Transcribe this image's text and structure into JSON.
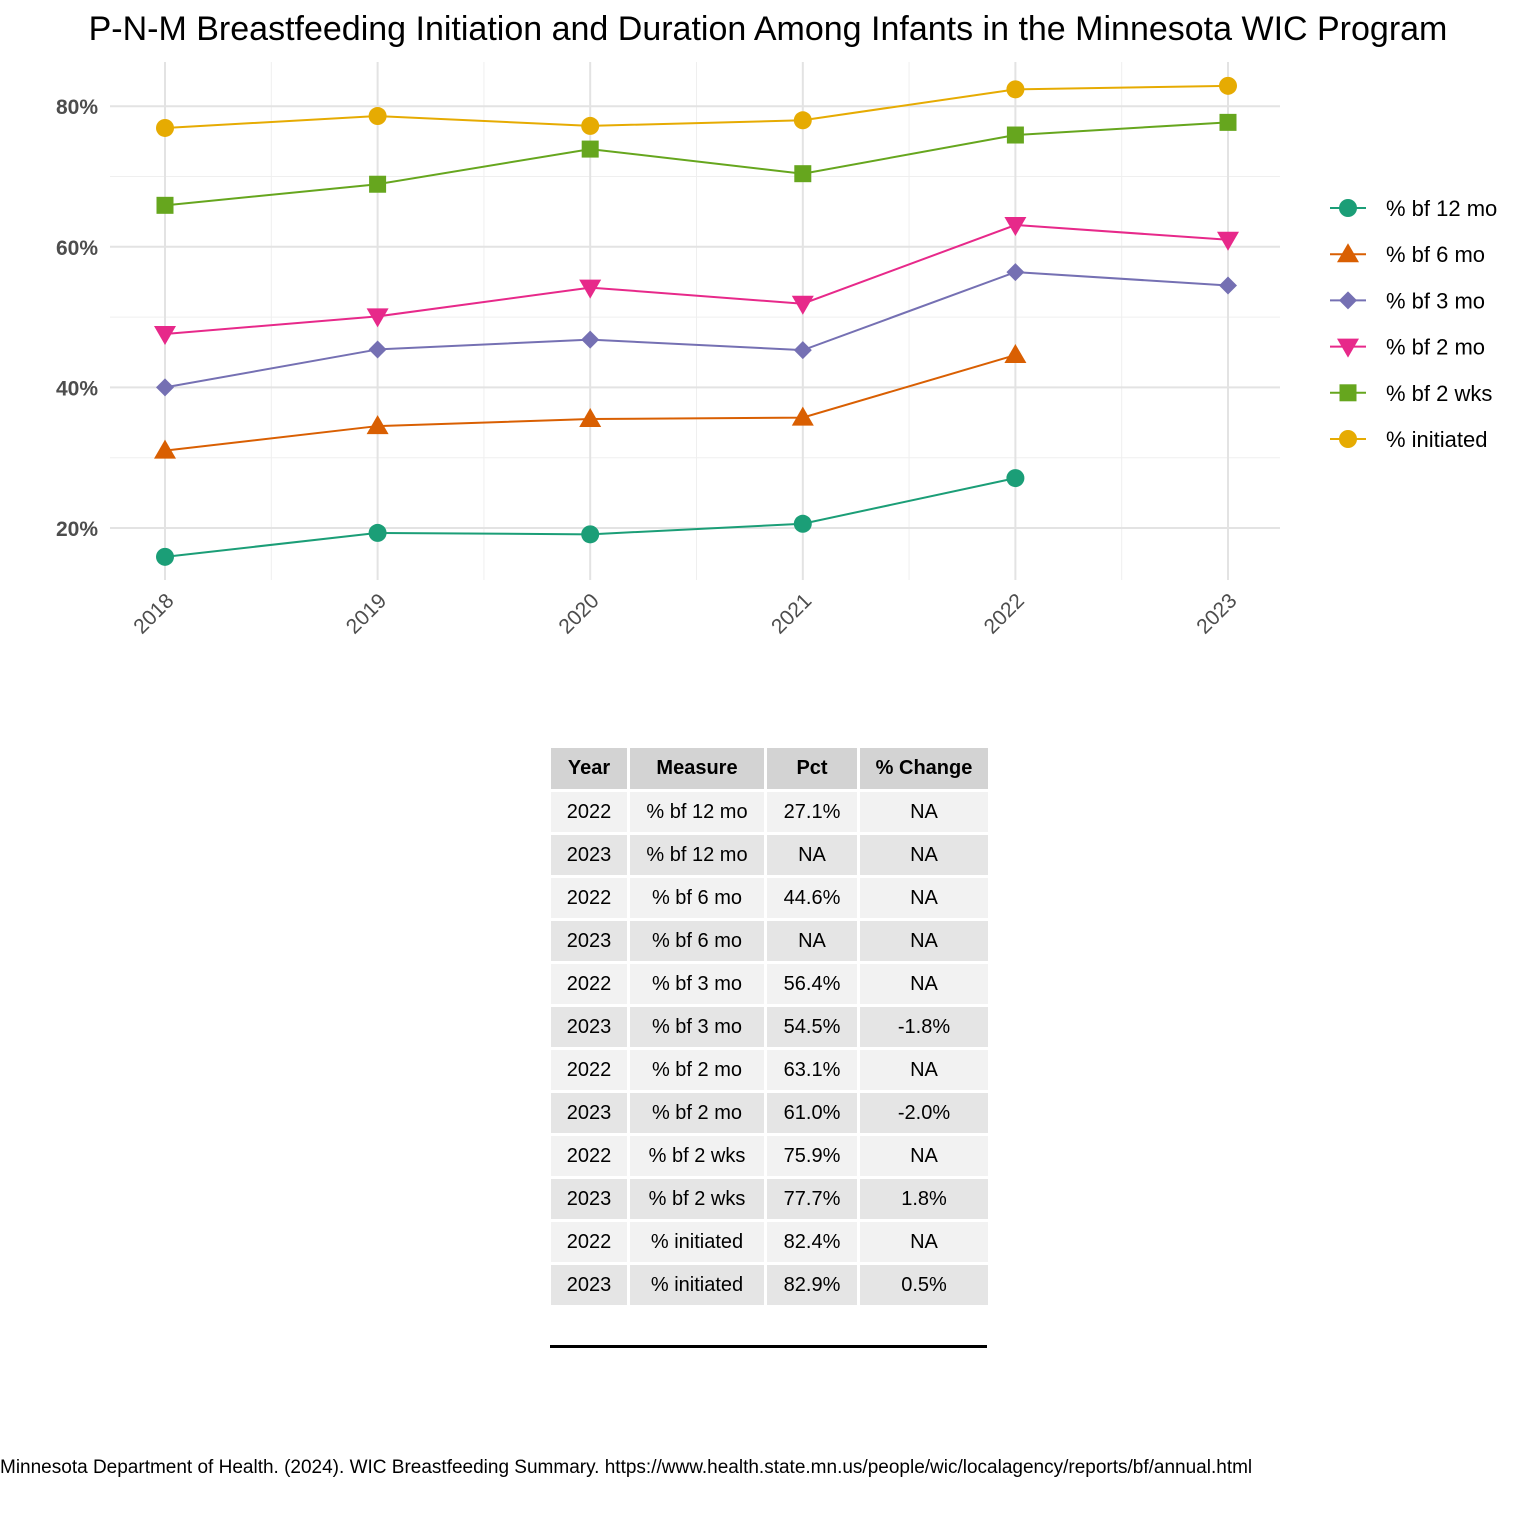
{
  "chart_data": {
    "type": "line",
    "title": "P-N-M Breastfeeding Initiation and Duration Among Infants in the Minnesota WIC Program",
    "xlabel": "",
    "ylabel": "",
    "x": [
      "2018",
      "2019",
      "2020",
      "2021",
      "2022",
      "2023"
    ],
    "y_ticks": [
      20,
      40,
      60,
      80
    ],
    "y_tick_labels": [
      "20%",
      "40%",
      "60%",
      "80%"
    ],
    "ylim": [
      12,
      86
    ],
    "grid": true,
    "legend_position": "right",
    "series": [
      {
        "name": "% bf 12 mo",
        "color": "#1b9e77",
        "marker": "circle",
        "values": [
          15.9,
          19.3,
          19.1,
          20.6,
          27.1,
          null
        ]
      },
      {
        "name": "% bf 6 mo",
        "color": "#d95f02",
        "marker": "triangle-up",
        "values": [
          31.0,
          34.5,
          35.5,
          35.7,
          44.6,
          null
        ]
      },
      {
        "name": "% bf 3 mo",
        "color": "#7570b3",
        "marker": "diamond",
        "values": [
          40.0,
          45.4,
          46.8,
          45.3,
          56.4,
          54.5
        ]
      },
      {
        "name": "% bf 2 mo",
        "color": "#e7298a",
        "marker": "triangle-down",
        "values": [
          47.6,
          50.1,
          54.2,
          51.9,
          63.1,
          61.0
        ]
      },
      {
        "name": "% bf 2 wks",
        "color": "#66a61e",
        "marker": "square",
        "values": [
          65.9,
          68.9,
          73.9,
          70.4,
          75.9,
          77.7
        ]
      },
      {
        "name": "% initiated",
        "color": "#e6ab02",
        "marker": "circle",
        "values": [
          76.9,
          78.6,
          77.2,
          78.0,
          82.4,
          82.9
        ]
      }
    ]
  },
  "table": {
    "headers": [
      "Year",
      "Measure",
      "Pct",
      "% Change"
    ],
    "rows": [
      [
        "2022",
        "% bf 12 mo",
        "27.1%",
        "NA"
      ],
      [
        "2023",
        "% bf 12 mo",
        "NA",
        "NA"
      ],
      [
        "2022",
        "% bf 6 mo",
        "44.6%",
        "NA"
      ],
      [
        "2023",
        "% bf 6 mo",
        "NA",
        "NA"
      ],
      [
        "2022",
        "% bf 3 mo",
        "56.4%",
        "NA"
      ],
      [
        "2023",
        "% bf 3 mo",
        "54.5%",
        "-1.8%"
      ],
      [
        "2022",
        "% bf 2 mo",
        "63.1%",
        "NA"
      ],
      [
        "2023",
        "% bf 2 mo",
        "61.0%",
        "-2.0%"
      ],
      [
        "2022",
        "% bf 2 wks",
        "75.9%",
        "NA"
      ],
      [
        "2023",
        "% bf 2 wks",
        "77.7%",
        "1.8%"
      ],
      [
        "2022",
        "% initiated",
        "82.4%",
        "NA"
      ],
      [
        "2023",
        "% initiated",
        "82.9%",
        "0.5%"
      ]
    ]
  },
  "source": "Minnesota Department of Health. (2024). WIC Breastfeeding Summary. https://www.health.state.mn.us/people/wic/localagency/reports/bf/annual.html"
}
